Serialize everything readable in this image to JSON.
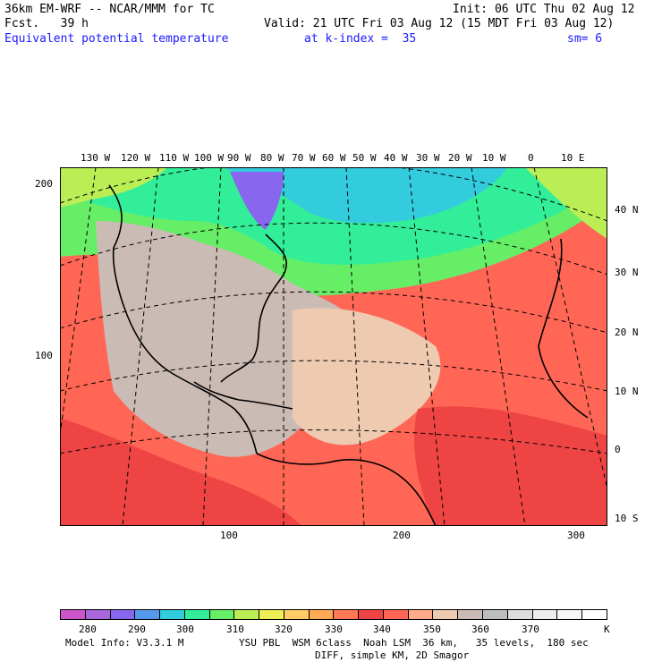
{
  "header": {
    "model": "36km EM-WRF -- NCAR/MMM for TC",
    "init": "Init: 06 UTC Thu 02 Aug 12",
    "fcst": "Fcst.   39 h",
    "valid": "Valid: 21 UTC Fri 03 Aug 12 (15 MDT Fri 03 Aug 12)",
    "field": "Equivalent potential temperature",
    "level": "at k-index =  35",
    "smooth": "sm= 6"
  },
  "top_lon_labels": [
    "130 W",
    "120 W",
    "110 W",
    "100 W",
    "90 W",
    "80 W",
    "70 W",
    "60 W",
    "50 W",
    "40 W",
    "30 W",
    "20 W",
    "10 W",
    "0",
    "10 E"
  ],
  "right_lat_labels": [
    "40 N",
    "30 N",
    "20 N",
    "10 N",
    "0",
    "10 S"
  ],
  "left_grid_labels": [
    "200",
    "100"
  ],
  "bottom_grid_labels": [
    "100",
    "200",
    "300"
  ],
  "colorbar": {
    "colors": [
      "#cc55cc",
      "#aa66dd",
      "#8866ee",
      "#5599ee",
      "#33ccdd",
      "#33ee99",
      "#66ee66",
      "#bbee55",
      "#eeee55",
      "#ffcc66",
      "#ffaa55",
      "#ff7755",
      "#ee4444",
      "#ff6655",
      "#ffaa88",
      "#eecab0",
      "#cbbbb5",
      "#bdbdbd",
      "#dddddd",
      "#eeeeee",
      "#f6f6f6",
      "#ffffff"
    ],
    "labels": [
      "280",
      "290",
      "300",
      "310",
      "320",
      "330",
      "340",
      "350",
      "360",
      "370",
      "K"
    ]
  },
  "footer": {
    "line1": "Model Info: V3.3.1 M",
    "line1b": "YSU PBL  WSM 6class  Noah LSM  36 km,   35 levels,  180 sec",
    "line2": "DIFF, simple KM, 2D Smagor"
  }
}
